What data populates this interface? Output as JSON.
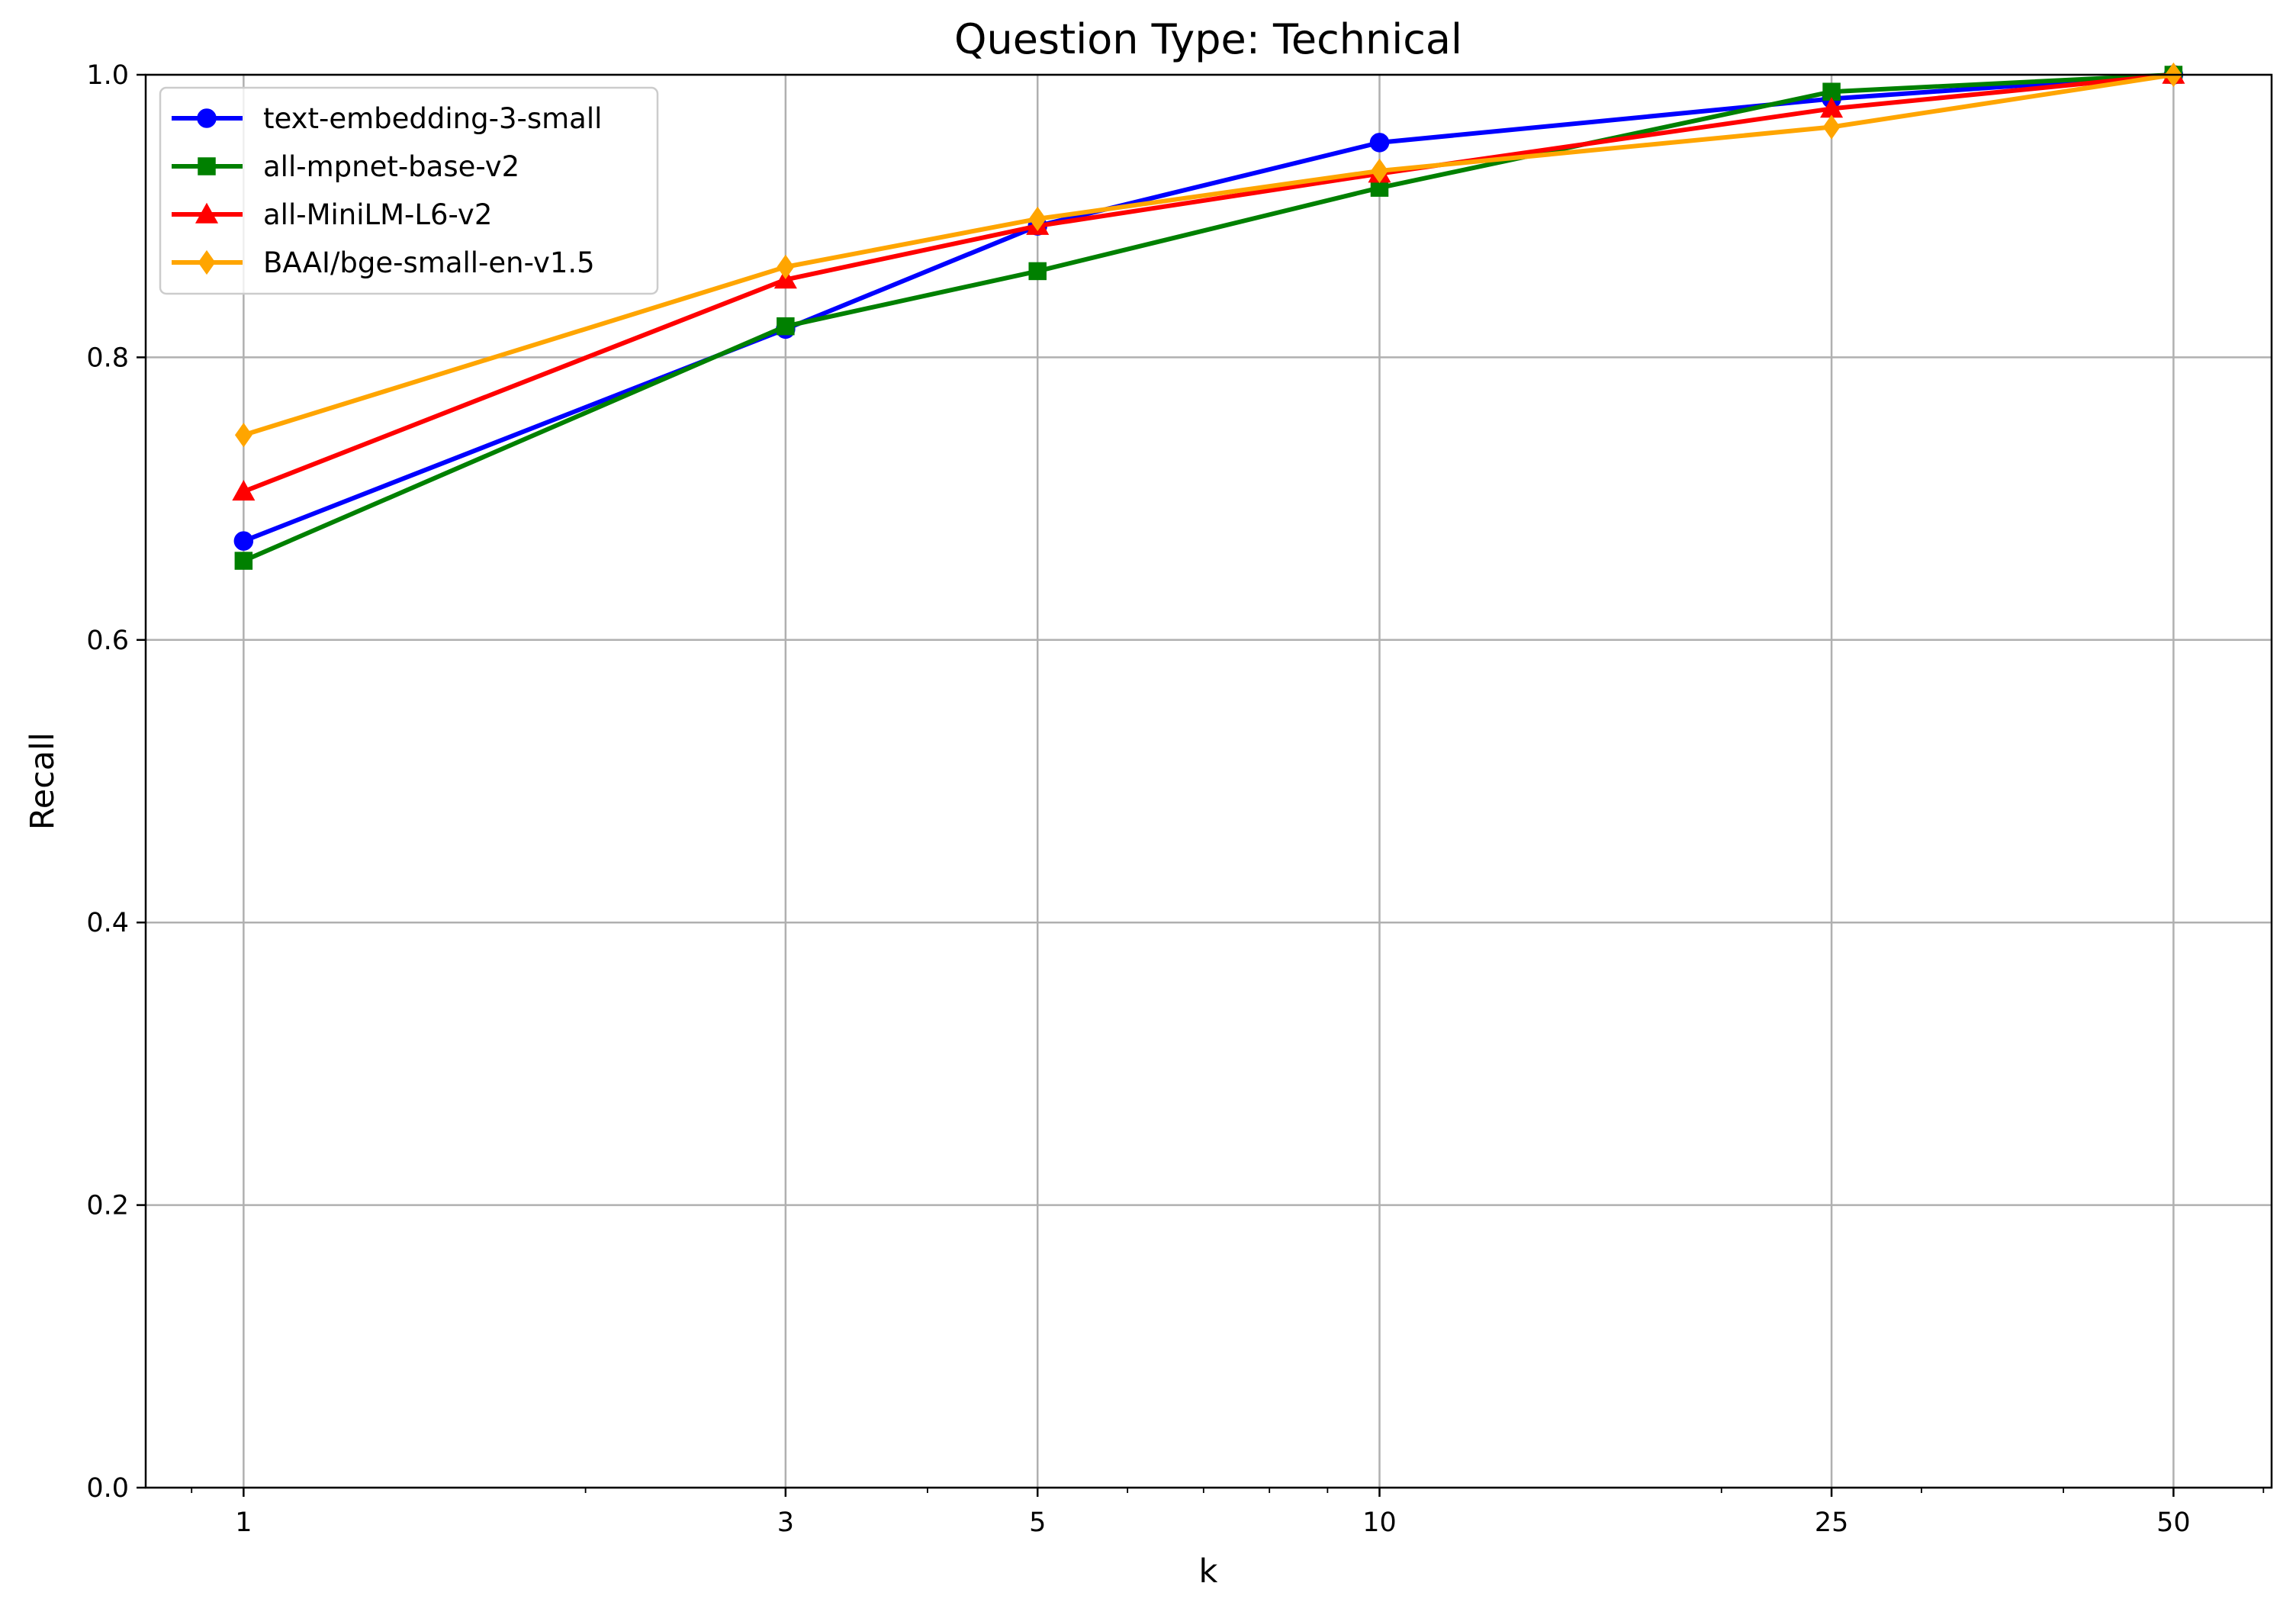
{
  "chart_data": {
    "type": "line",
    "title": "Question Type: Technical",
    "xlabel": "k",
    "ylabel": "Recall",
    "xscale": "log",
    "x": [
      1,
      3,
      5,
      10,
      25,
      50
    ],
    "x_tick_labels": [
      "1",
      "3",
      "5",
      "10",
      "25",
      "50"
    ],
    "ylim": [
      0.0,
      1.0
    ],
    "y_ticks": [
      0.0,
      0.2,
      0.4,
      0.6,
      0.8,
      1.0
    ],
    "y_tick_labels": [
      "0.0",
      "0.2",
      "0.4",
      "0.6",
      "0.8",
      "1.0"
    ],
    "grid": true,
    "legend_position": "upper-left",
    "series": [
      {
        "name": "text-embedding-3-small",
        "color": "#0000ff",
        "marker": "circle",
        "values": [
          0.67,
          0.82,
          0.893,
          0.952,
          0.983,
          1.0
        ]
      },
      {
        "name": "all-mpnet-base-v2",
        "color": "#008000",
        "marker": "square",
        "values": [
          0.656,
          0.822,
          0.861,
          0.92,
          0.988,
          1.0
        ]
      },
      {
        "name": "all-MiniLM-L6-v2",
        "color": "#ff0000",
        "marker": "triangle",
        "values": [
          0.705,
          0.855,
          0.893,
          0.93,
          0.976,
          1.0
        ]
      },
      {
        "name": "BAAI/bge-small-en-v1.5",
        "color": "#ffa500",
        "marker": "diamond",
        "values": [
          0.745,
          0.864,
          0.898,
          0.932,
          0.963,
          1.0
        ]
      }
    ]
  }
}
